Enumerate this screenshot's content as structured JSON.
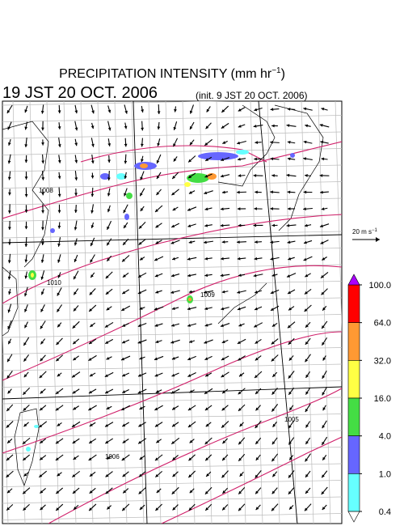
{
  "header": {
    "title": "PRECIPITATION INTENSITY (mm hr",
    "title_exponent": "−1",
    "title_close": ")",
    "valid_time": "19 JST 20 OCT. 2006",
    "init_time": "(init. 9 JST 20 OCT. 2006)"
  },
  "wind_reference": {
    "label": "20 m s",
    "exponent": "−1"
  },
  "colorbar": {
    "levels": [
      {
        "value": 100,
        "label": "100.0"
      },
      {
        "value": 64,
        "label": "64.0"
      },
      {
        "value": 32,
        "label": "32.0"
      },
      {
        "value": 16,
        "label": "16.0"
      },
      {
        "value": 4,
        "label": "4.0"
      },
      {
        "value": 1,
        "label": "1.0"
      },
      {
        "value": 0.4,
        "label": "0.4"
      }
    ],
    "colors": [
      "#ff0000",
      "#ff9933",
      "#ffff44",
      "#44dd44",
      "#6666ff",
      "#66ffff"
    ],
    "over_color": "#aa00ff",
    "under_color": "#ffffff"
  },
  "contour_labels": [
    "1010",
    "1009",
    "1008",
    "1006",
    "1005"
  ]
}
